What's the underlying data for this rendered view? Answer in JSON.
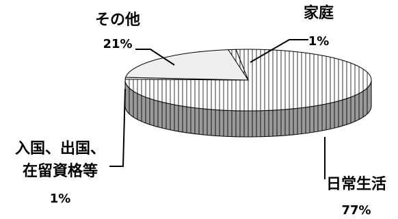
{
  "chart_data": {
    "type": "pie",
    "title": "",
    "slices": [
      {
        "label": "日常生活",
        "display": "77%",
        "value": 77,
        "fill": "#ffffff",
        "side_fill": "#8a8a8a",
        "pattern": "vertical-lines"
      },
      {
        "label": "入国、出国、在留資格等",
        "label_lines": [
          "入国、出国、",
          "在留資格等"
        ],
        "display": "1%",
        "value": 1,
        "fill": "#f2f2f2",
        "side_fill": "#b5b5b5",
        "pattern": "solid"
      },
      {
        "label": "その他",
        "display": "21%",
        "value": 21,
        "fill": "#efefef",
        "side_fill": "#b5b5b5",
        "pattern": "solid"
      },
      {
        "label": "家庭",
        "display": "1%",
        "value": 1,
        "fill": "#ffffff",
        "side_fill": "#8a8a8a",
        "pattern": "vertical-lines"
      }
    ],
    "style": "3d-pie",
    "colors": {
      "edge": "#000000",
      "pattern_line": "#333333"
    }
  }
}
